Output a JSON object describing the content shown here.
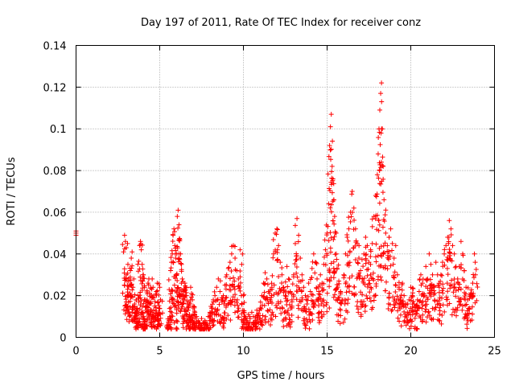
{
  "chart_data": {
    "type": "scatter",
    "title": "Day 197 of 2011, Rate Of TEC Index for receiver conz",
    "xlabel": "GPS time / hours",
    "ylabel": "ROTI / TECUs",
    "xlim": [
      0,
      25
    ],
    "ylim": [
      0,
      0.14
    ],
    "x_ticks": [
      "0",
      "5",
      "10",
      "15",
      "20",
      "25"
    ],
    "y_ticks": [
      "0",
      "0.02",
      "0.04",
      "0.06",
      "0.08",
      "0.1",
      "0.12",
      "0.14"
    ],
    "x_tick_values": [
      0,
      5,
      10,
      15,
      20,
      25
    ],
    "y_tick_values": [
      0,
      0.02,
      0.04,
      0.06,
      0.08,
      0.1,
      0.12,
      0.14
    ],
    "grid": true,
    "marker": "+",
    "marker_color": "#ff0000",
    "series": [
      {
        "points": [
          [
            0.0,
            0.05
          ],
          [
            0.0,
            0.051
          ],
          [
            0.0,
            0.049
          ],
          [
            2.9,
            0.049
          ],
          [
            2.95,
            0.046
          ],
          [
            3.0,
            0.043
          ],
          [
            3.0,
            0.03
          ],
          [
            3.05,
            0.027
          ],
          [
            3.1,
            0.035
          ],
          [
            3.15,
            0.028
          ],
          [
            3.2,
            0.025
          ],
          [
            3.25,
            0.032
          ],
          [
            3.3,
            0.038
          ],
          [
            3.35,
            0.041
          ],
          [
            3.4,
            0.024
          ],
          [
            3.45,
            0.028
          ],
          [
            3.5,
            0.016
          ],
          [
            3.55,
            0.012
          ],
          [
            3.6,
            0.009
          ],
          [
            3.6,
            0.018
          ],
          [
            3.65,
            0.014
          ],
          [
            3.7,
            0.02
          ],
          [
            3.75,
            0.017
          ],
          [
            3.8,
            0.044
          ],
          [
            3.85,
            0.046
          ],
          [
            3.9,
            0.042
          ],
          [
            3.95,
            0.035
          ],
          [
            4.0,
            0.03
          ],
          [
            4.0,
            0.012
          ],
          [
            4.05,
            0.01
          ],
          [
            4.1,
            0.024
          ],
          [
            4.15,
            0.018
          ],
          [
            4.2,
            0.015
          ],
          [
            4.25,
            0.009
          ],
          [
            4.3,
            0.026
          ],
          [
            4.35,
            0.028
          ],
          [
            4.4,
            0.021
          ],
          [
            4.45,
            0.017
          ],
          [
            4.5,
            0.013
          ],
          [
            4.55,
            0.028
          ],
          [
            4.6,
            0.024
          ],
          [
            4.65,
            0.019
          ],
          [
            4.7,
            0.015
          ],
          [
            4.75,
            0.011
          ],
          [
            4.8,
            0.022
          ],
          [
            4.85,
            0.026
          ],
          [
            4.9,
            0.017
          ],
          [
            4.95,
            0.014
          ],
          [
            5.0,
            0.024
          ],
          [
            5.05,
            0.018
          ],
          [
            5.5,
            0.006
          ],
          [
            5.55,
            0.008
          ],
          [
            5.6,
            0.01
          ],
          [
            5.65,
            0.032
          ],
          [
            5.7,
            0.036
          ],
          [
            5.75,
            0.04
          ],
          [
            5.8,
            0.049
          ],
          [
            5.85,
            0.052
          ],
          [
            5.9,
            0.044
          ],
          [
            5.95,
            0.038
          ],
          [
            6.0,
            0.03
          ],
          [
            6.0,
            0.008
          ],
          [
            6.05,
            0.058
          ],
          [
            6.1,
            0.061
          ],
          [
            6.15,
            0.054
          ],
          [
            6.2,
            0.047
          ],
          [
            6.25,
            0.04
          ],
          [
            6.3,
            0.035
          ],
          [
            6.35,
            0.028
          ],
          [
            6.4,
            0.022
          ],
          [
            6.45,
            0.018
          ],
          [
            6.5,
            0.026
          ],
          [
            6.55,
            0.024
          ],
          [
            6.6,
            0.02
          ],
          [
            6.65,
            0.016
          ],
          [
            6.7,
            0.013
          ],
          [
            6.75,
            0.01
          ],
          [
            6.8,
            0.008
          ],
          [
            6.85,
            0.024
          ],
          [
            6.9,
            0.021
          ],
          [
            6.95,
            0.018
          ],
          [
            7.0,
            0.015
          ],
          [
            7.0,
            0.007
          ],
          [
            7.1,
            0.012
          ],
          [
            7.2,
            0.01
          ],
          [
            7.3,
            0.008
          ],
          [
            7.4,
            0.007
          ],
          [
            7.5,
            0.009
          ],
          [
            7.6,
            0.007
          ],
          [
            7.7,
            0.008
          ],
          [
            7.8,
            0.006
          ],
          [
            7.9,
            0.01
          ],
          [
            8.0,
            0.012
          ],
          [
            8.1,
            0.014
          ],
          [
            8.2,
            0.017
          ],
          [
            8.3,
            0.02
          ],
          [
            8.4,
            0.024
          ],
          [
            8.5,
            0.028
          ],
          [
            8.6,
            0.022
          ],
          [
            8.7,
            0.018
          ],
          [
            8.8,
            0.02
          ],
          [
            8.9,
            0.025
          ],
          [
            9.0,
            0.03
          ],
          [
            9.1,
            0.033
          ],
          [
            9.2,
            0.036
          ],
          [
            9.3,
            0.04
          ],
          [
            9.4,
            0.044
          ],
          [
            9.5,
            0.038
          ],
          [
            9.6,
            0.032
          ],
          [
            9.7,
            0.028
          ],
          [
            9.8,
            0.042
          ],
          [
            9.9,
            0.035
          ],
          [
            10.0,
            0.02
          ],
          [
            10.0,
            0.012
          ],
          [
            10.1,
            0.01
          ],
          [
            10.2,
            0.008
          ],
          [
            10.3,
            0.011
          ],
          [
            10.4,
            0.009
          ],
          [
            10.5,
            0.012
          ],
          [
            10.6,
            0.01
          ],
          [
            10.7,
            0.008
          ],
          [
            10.8,
            0.013
          ],
          [
            10.9,
            0.011
          ],
          [
            11.0,
            0.014
          ],
          [
            11.1,
            0.02
          ],
          [
            11.2,
            0.026
          ],
          [
            11.3,
            0.031
          ],
          [
            11.4,
            0.028
          ],
          [
            11.5,
            0.022
          ],
          [
            11.6,
            0.018
          ],
          [
            11.7,
            0.024
          ],
          [
            11.8,
            0.04
          ],
          [
            11.9,
            0.05
          ],
          [
            12.0,
            0.052
          ],
          [
            12.1,
            0.044
          ],
          [
            12.2,
            0.036
          ],
          [
            12.3,
            0.03
          ],
          [
            12.4,
            0.024
          ],
          [
            12.5,
            0.02
          ],
          [
            12.6,
            0.034
          ],
          [
            12.7,
            0.028
          ],
          [
            12.8,
            0.022
          ],
          [
            12.9,
            0.018
          ],
          [
            13.0,
            0.03
          ],
          [
            13.1,
            0.045
          ],
          [
            13.2,
            0.057
          ],
          [
            13.3,
            0.049
          ],
          [
            13.4,
            0.038
          ],
          [
            13.5,
            0.03
          ],
          [
            13.6,
            0.024
          ],
          [
            13.7,
            0.02
          ],
          [
            13.8,
            0.016
          ],
          [
            13.9,
            0.026
          ],
          [
            14.0,
            0.022
          ],
          [
            14.1,
            0.033
          ],
          [
            14.2,
            0.04
          ],
          [
            14.3,
            0.036
          ],
          [
            14.4,
            0.028
          ],
          [
            14.5,
            0.022
          ],
          [
            14.6,
            0.03
          ],
          [
            14.7,
            0.026
          ],
          [
            14.8,
            0.035
          ],
          [
            14.9,
            0.042
          ],
          [
            15.0,
            0.05
          ],
          [
            15.1,
            0.064
          ],
          [
            15.15,
            0.092
          ],
          [
            15.2,
            0.101
          ],
          [
            15.25,
            0.107
          ],
          [
            15.3,
            0.082
          ],
          [
            15.35,
            0.076
          ],
          [
            15.4,
            0.066
          ],
          [
            15.45,
            0.058
          ],
          [
            15.5,
            0.05
          ],
          [
            15.55,
            0.04
          ],
          [
            15.6,
            0.033
          ],
          [
            15.7,
            0.027
          ],
          [
            15.8,
            0.022
          ],
          [
            15.9,
            0.018
          ],
          [
            16.0,
            0.03
          ],
          [
            16.1,
            0.04
          ],
          [
            16.2,
            0.048
          ],
          [
            16.3,
            0.052
          ],
          [
            16.4,
            0.06
          ],
          [
            16.5,
            0.07
          ],
          [
            16.6,
            0.062
          ],
          [
            16.7,
            0.052
          ],
          [
            16.8,
            0.045
          ],
          [
            16.9,
            0.038
          ],
          [
            17.0,
            0.032
          ],
          [
            17.1,
            0.028
          ],
          [
            17.2,
            0.04
          ],
          [
            17.3,
            0.048
          ],
          [
            17.4,
            0.044
          ],
          [
            17.5,
            0.036
          ],
          [
            17.6,
            0.03
          ],
          [
            17.7,
            0.045
          ],
          [
            17.8,
            0.058
          ],
          [
            17.9,
            0.068
          ],
          [
            18.0,
            0.078
          ],
          [
            18.05,
            0.088
          ],
          [
            18.1,
            0.1
          ],
          [
            18.15,
            0.109
          ],
          [
            18.2,
            0.117
          ],
          [
            18.25,
            0.122
          ],
          [
            18.3,
            0.1
          ],
          [
            18.35,
            0.082
          ],
          [
            18.4,
            0.066
          ],
          [
            18.5,
            0.05
          ],
          [
            18.6,
            0.044
          ],
          [
            18.7,
            0.048
          ],
          [
            18.8,
            0.052
          ],
          [
            18.9,
            0.045
          ],
          [
            19.0,
            0.038
          ],
          [
            19.1,
            0.044
          ],
          [
            19.2,
            0.03
          ],
          [
            19.3,
            0.024
          ],
          [
            19.4,
            0.018
          ],
          [
            19.5,
            0.026
          ],
          [
            19.6,
            0.02
          ],
          [
            19.7,
            0.016
          ],
          [
            19.8,
            0.012
          ],
          [
            19.9,
            0.018
          ],
          [
            20.0,
            0.024
          ],
          [
            20.1,
            0.02
          ],
          [
            20.2,
            0.016
          ],
          [
            20.3,
            0.013
          ],
          [
            20.4,
            0.018
          ],
          [
            20.5,
            0.022
          ],
          [
            20.6,
            0.03
          ],
          [
            20.7,
            0.026
          ],
          [
            20.8,
            0.02
          ],
          [
            20.9,
            0.034
          ],
          [
            21.0,
            0.028
          ],
          [
            21.1,
            0.04
          ],
          [
            21.2,
            0.035
          ],
          [
            21.3,
            0.03
          ],
          [
            21.4,
            0.024
          ],
          [
            21.5,
            0.036
          ],
          [
            21.6,
            0.03
          ],
          [
            21.7,
            0.024
          ],
          [
            21.8,
            0.03
          ],
          [
            21.9,
            0.036
          ],
          [
            22.0,
            0.04
          ],
          [
            22.1,
            0.044
          ],
          [
            22.2,
            0.048
          ],
          [
            22.3,
            0.056
          ],
          [
            22.4,
            0.052
          ],
          [
            22.5,
            0.044
          ],
          [
            22.6,
            0.04
          ],
          [
            22.7,
            0.034
          ],
          [
            22.8,
            0.028
          ],
          [
            22.9,
            0.034
          ],
          [
            23.0,
            0.046
          ],
          [
            23.1,
            0.04
          ],
          [
            23.2,
            0.032
          ],
          [
            23.3,
            0.024
          ],
          [
            23.4,
            0.018
          ],
          [
            23.5,
            0.014
          ],
          [
            23.6,
            0.02
          ],
          [
            23.7,
            0.026
          ],
          [
            23.8,
            0.04
          ],
          [
            23.85,
            0.036
          ]
        ]
      }
    ]
  }
}
